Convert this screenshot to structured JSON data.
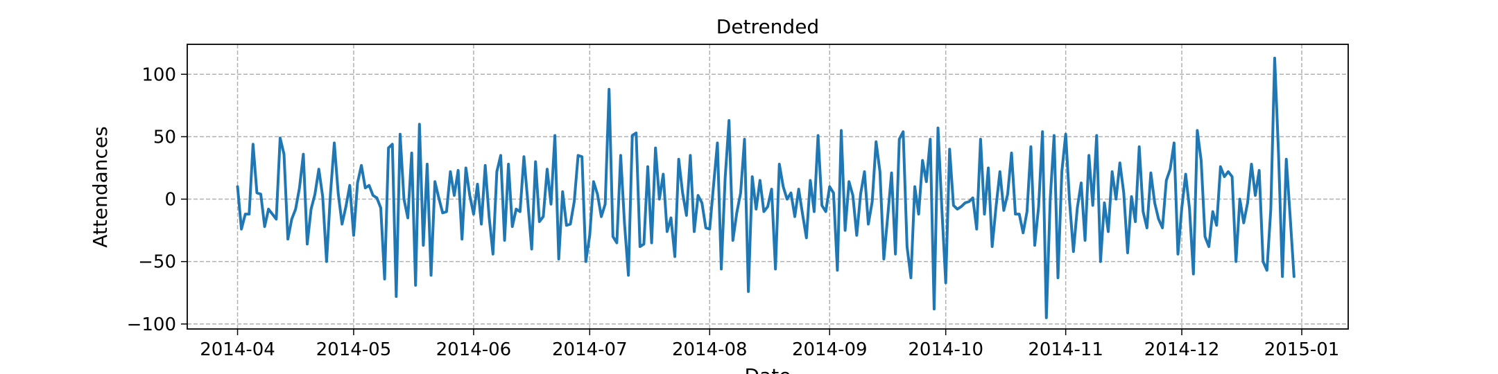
{
  "chart_data": {
    "type": "line",
    "title": "Detrended",
    "xlabel": "Date",
    "ylabel": "Attendances",
    "ylim": [
      -104,
      124
    ],
    "xlim": [
      "2014-03-19",
      "2015-01-13"
    ],
    "grid": true,
    "grid_style": "dashed",
    "line_color": "#1f77b4",
    "x_ticks": [
      "2014-04-01",
      "2014-05-01",
      "2014-06-01",
      "2014-07-01",
      "2014-08-01",
      "2014-09-01",
      "2014-10-01",
      "2014-11-01",
      "2014-12-01",
      "2015-01-01"
    ],
    "x_tick_labels": [
      "2014-04",
      "2014-05",
      "2014-06",
      "2014-07",
      "2014-08",
      "2014-09",
      "2014-10",
      "2014-11",
      "2014-12",
      "2015-01"
    ],
    "y_ticks": [
      -100,
      -50,
      0,
      50,
      100
    ],
    "y_tick_labels": [
      "−100",
      "−50",
      "0",
      "50",
      "100"
    ],
    "series": [
      {
        "start_date": "2014-04-01",
        "values": [
          10,
          -24,
          -12,
          -12,
          44,
          5,
          4,
          -22,
          -8,
          -12,
          -16,
          49,
          36,
          -32,
          -16,
          -8,
          9,
          36,
          -36,
          -8,
          4,
          24,
          2,
          -50,
          4,
          45,
          5,
          -20,
          -6,
          11,
          -29,
          13,
          27,
          9,
          11,
          3,
          1,
          -7,
          -64,
          41,
          44,
          -78,
          52,
          0,
          -15,
          37,
          -69,
          60,
          -37,
          28,
          -61,
          14,
          1,
          -11,
          -10,
          22,
          3,
          23,
          -32,
          25,
          3,
          -12,
          12,
          -20,
          27,
          -14,
          -44,
          22,
          35,
          -33,
          28,
          -22,
          -8,
          -10,
          34,
          -2,
          -40,
          30,
          -18,
          -14,
          24,
          -4,
          51,
          -48,
          6,
          -21,
          -20,
          -2,
          35,
          34,
          -50,
          -29,
          14,
          4,
          -14,
          -4,
          88,
          -30,
          -35,
          35,
          -20,
          -61,
          51,
          53,
          -38,
          -36,
          26,
          -35,
          41,
          0,
          20,
          -26,
          -15,
          -46,
          32,
          5,
          -13,
          35,
          -26,
          3,
          -3,
          -23,
          -24,
          11,
          45,
          -56,
          17,
          63,
          -33,
          -11,
          5,
          48,
          -74,
          18,
          -8,
          15,
          -10,
          -6,
          8,
          -56,
          28,
          10,
          0,
          5,
          -14,
          8,
          -12,
          -31,
          15,
          -10,
          51,
          -5,
          -10,
          10,
          5,
          -57,
          55,
          -25,
          14,
          3,
          -29,
          4,
          22,
          -20,
          -2,
          46,
          22,
          -48,
          -14,
          21,
          -44,
          48,
          54,
          -38,
          -63,
          10,
          -12,
          31,
          14,
          48,
          -88,
          57,
          -8,
          -67,
          40,
          -5,
          -8,
          -6,
          -3,
          -2,
          1,
          -24,
          48,
          -12,
          25,
          -38,
          -6,
          22,
          -9,
          4,
          37,
          -12,
          -12,
          -27,
          -10,
          42,
          -37,
          -6,
          54,
          -95,
          0,
          51,
          -63,
          22,
          52,
          -2,
          -42,
          -7,
          13,
          -33,
          35,
          -5,
          51,
          -50,
          -3,
          -26,
          22,
          0,
          29,
          5,
          -43,
          2,
          -18,
          42,
          -10,
          -23,
          21,
          -3,
          -16,
          -23,
          15,
          24,
          45,
          -44,
          -7,
          20,
          -8,
          -60,
          55,
          31,
          -30,
          -38,
          -10,
          -21,
          26,
          18,
          22,
          18,
          -50,
          0,
          -19,
          -3,
          28,
          3,
          23,
          -50,
          -57,
          -8,
          113,
          36,
          -62,
          32,
          -14,
          -62
        ]
      }
    ]
  }
}
